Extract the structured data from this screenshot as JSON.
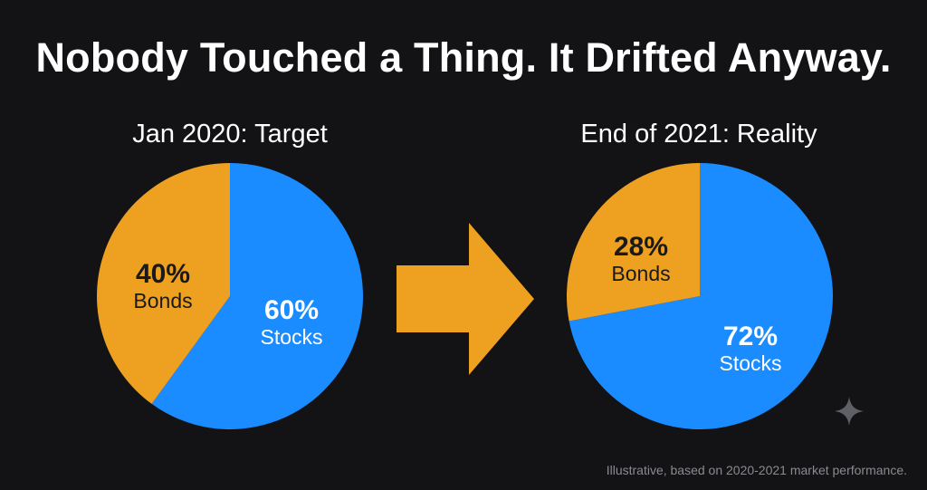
{
  "title": "Nobody Touched a Thing. It Drifted Anyway.",
  "footnote": "Illustrative, based on 2020-2021 market performance.",
  "colors": {
    "background": "#131316",
    "stocks": "#1a8cff",
    "bonds": "#eea021",
    "arrow": "#eea021"
  },
  "icons": {
    "arrow": "right-arrow-icon",
    "sparkle": "sparkle-icon"
  },
  "chart_data": [
    {
      "type": "pie",
      "title": "Jan 2020: Target",
      "slices": [
        {
          "label": "Stocks",
          "value": 60,
          "value_label": "60%",
          "color": "#1a8cff"
        },
        {
          "label": "Bonds",
          "value": 40,
          "value_label": "40%",
          "color": "#eea021"
        }
      ]
    },
    {
      "type": "pie",
      "title": "End of 2021: Reality",
      "slices": [
        {
          "label": "Stocks",
          "value": 72,
          "value_label": "72%",
          "color": "#1a8cff"
        },
        {
          "label": "Bonds",
          "value": 28,
          "value_label": "28%",
          "color": "#eea021"
        }
      ]
    }
  ]
}
